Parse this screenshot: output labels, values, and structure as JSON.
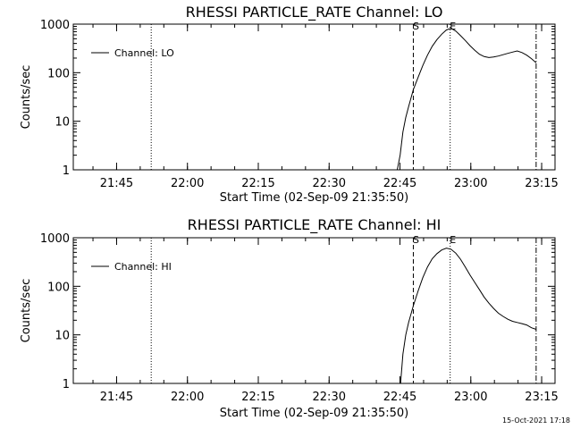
{
  "timestamp": "15-Oct-2021 17:18",
  "chart_data": [
    {
      "type": "line",
      "title": "RHESSI PARTICLE_RATE Channel: LO",
      "xlabel": "Start Time (02-Sep-09 21:35:50)",
      "ylabel": "Counts/sec",
      "x_unit": "minutes after 21:35:50",
      "xlim": [
        0,
        102
      ],
      "ylim": [
        1,
        1000
      ],
      "yscale": "log",
      "xticks": [
        "21:45",
        "22:00",
        "22:15",
        "22:30",
        "22:45",
        "23:00",
        "23:15"
      ],
      "xtick_values": [
        9.17,
        24.17,
        39.17,
        54.17,
        69.17,
        84.17,
        99.17
      ],
      "yticks": [
        "1",
        "10",
        "100",
        "1000"
      ],
      "ytick_values": [
        1,
        10,
        100,
        1000
      ],
      "legend": "top-left",
      "series": [
        {
          "name": "Channel: LO",
          "x": [
            68.6,
            69.2,
            69.8,
            70.4,
            71.0,
            72.0,
            73.0,
            74.0,
            75.0,
            76.0,
            77.0,
            78.0,
            79.0,
            80.0,
            81.0,
            82.0,
            83.0,
            84.0,
            85.0,
            86.0,
            87.0,
            88.0,
            89.0,
            90.0,
            91.0,
            92.0,
            93.0,
            94.0,
            95.0,
            96.0,
            97.0,
            98.0
          ],
          "y": [
            1,
            2,
            6,
            12,
            20,
            45,
            80,
            140,
            230,
            350,
            480,
            620,
            760,
            820,
            720,
            580,
            460,
            360,
            290,
            240,
            215,
            205,
            210,
            220,
            235,
            250,
            265,
            280,
            260,
            230,
            195,
            160
          ]
        }
      ],
      "markers": [
        {
          "label": "",
          "x": 16.5,
          "style": "dotted"
        },
        {
          "label": "S",
          "x": 72.0,
          "style": "dashed"
        },
        {
          "label": "E",
          "x": 79.8,
          "style": "dotted"
        },
        {
          "label": "",
          "x": 98.0,
          "style": "dash-dot"
        }
      ]
    },
    {
      "type": "line",
      "title": "RHESSI PARTICLE_RATE Channel: HI",
      "xlabel": "Start Time (02-Sep-09 21:35:50)",
      "ylabel": "Counts/sec",
      "x_unit": "minutes after 21:35:50",
      "xlim": [
        0,
        102
      ],
      "ylim": [
        1,
        1000
      ],
      "yscale": "log",
      "xticks": [
        "21:45",
        "22:00",
        "22:15",
        "22:30",
        "22:45",
        "23:00",
        "23:15"
      ],
      "xtick_values": [
        9.17,
        24.17,
        39.17,
        54.17,
        69.17,
        84.17,
        99.17
      ],
      "yticks": [
        "1",
        "10",
        "100",
        "1000"
      ],
      "ytick_values": [
        1,
        10,
        100,
        1000
      ],
      "legend": "top-left",
      "series": [
        {
          "name": "Channel: HI",
          "x": [
            69.3,
            69.8,
            70.4,
            71.0,
            72.0,
            73.0,
            74.0,
            75.0,
            76.0,
            77.0,
            78.0,
            79.0,
            80.0,
            81.0,
            82.0,
            83.0,
            84.0,
            85.0,
            86.0,
            87.0,
            88.0,
            89.0,
            90.0,
            91.0,
            92.0,
            93.0,
            94.0,
            95.0,
            96.0,
            97.0,
            98.0
          ],
          "y": [
            1,
            4,
            10,
            18,
            40,
            80,
            150,
            250,
            370,
            470,
            560,
            610,
            580,
            480,
            360,
            250,
            170,
            120,
            85,
            60,
            45,
            35,
            28,
            24,
            21,
            19,
            18,
            17,
            16,
            14,
            13
          ]
        }
      ],
      "markers": [
        {
          "label": "",
          "x": 16.5,
          "style": "dotted"
        },
        {
          "label": "S",
          "x": 72.0,
          "style": "dashed"
        },
        {
          "label": "E",
          "x": 79.8,
          "style": "dotted"
        },
        {
          "label": "",
          "x": 98.0,
          "style": "dash-dot"
        }
      ]
    }
  ]
}
